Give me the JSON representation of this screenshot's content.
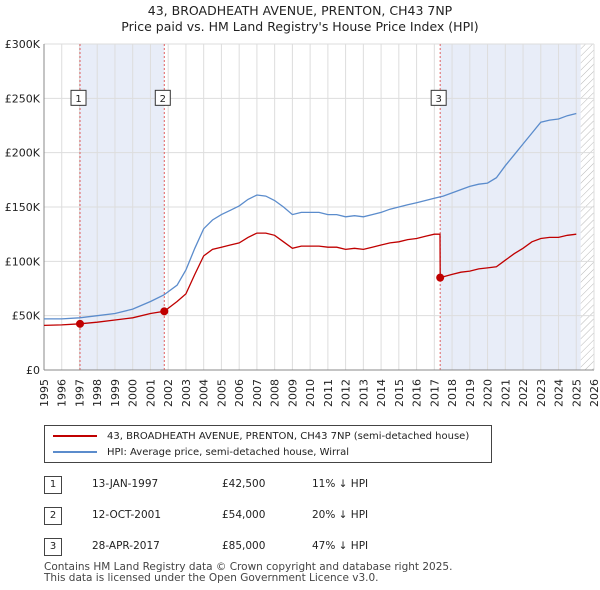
{
  "title_line1": "43, BROADHEATH AVENUE, PRENTON, CH43 7NP",
  "title_line2": "Price paid vs. HM Land Registry's House Price Index (HPI)",
  "chart_data": {
    "type": "line",
    "x_range": [
      1995,
      2026
    ],
    "ylim": [
      0,
      300000
    ],
    "y_ticks": [
      0,
      50000,
      100000,
      150000,
      200000,
      250000,
      300000
    ],
    "y_tick_labels": [
      "£0",
      "£50K",
      "£100K",
      "£150K",
      "£200K",
      "£250K",
      "£300K"
    ],
    "x_ticks": [
      1995,
      1996,
      1997,
      1998,
      1999,
      2000,
      2001,
      2002,
      2003,
      2004,
      2005,
      2006,
      2007,
      2008,
      2009,
      2010,
      2011,
      2012,
      2013,
      2014,
      2015,
      2016,
      2017,
      2018,
      2019,
      2020,
      2021,
      2022,
      2023,
      2024,
      2025,
      2026
    ],
    "x_tick_labels": [
      "1995",
      "1996",
      "1997",
      "1998",
      "1999",
      "2000",
      "2001",
      "2002",
      "2003",
      "2004",
      "2005",
      "2006",
      "2007",
      "2008",
      "2009",
      "2010",
      "2011",
      "2012",
      "2013",
      "2014",
      "2015",
      "2016",
      "2017",
      "2018",
      "2019",
      "2020",
      "2021",
      "2022",
      "2023",
      "2024",
      "2025",
      "2026"
    ],
    "grid": true,
    "forecast_shade_start": 2025.25,
    "series": [
      {
        "name": "hpi",
        "color": "#5b8ccc",
        "points": [
          [
            1995,
            47000
          ],
          [
            1996,
            47000
          ],
          [
            1997,
            48000
          ],
          [
            1998,
            50000
          ],
          [
            1999,
            52000
          ],
          [
            2000,
            56000
          ],
          [
            2001,
            63000
          ],
          [
            2001.75,
            69000
          ],
          [
            2002.5,
            78000
          ],
          [
            2003,
            92000
          ],
          [
            2003.5,
            112000
          ],
          [
            2004,
            130000
          ],
          [
            2004.5,
            138000
          ],
          [
            2005,
            143000
          ],
          [
            2005.5,
            147000
          ],
          [
            2006,
            151000
          ],
          [
            2006.5,
            157000
          ],
          [
            2007,
            161000
          ],
          [
            2007.5,
            160000
          ],
          [
            2008,
            156000
          ],
          [
            2008.5,
            150000
          ],
          [
            2009,
            143000
          ],
          [
            2009.5,
            145000
          ],
          [
            2010,
            145000
          ],
          [
            2010.5,
            145000
          ],
          [
            2011,
            143000
          ],
          [
            2011.5,
            143000
          ],
          [
            2012,
            141000
          ],
          [
            2012.5,
            142000
          ],
          [
            2013,
            141000
          ],
          [
            2013.5,
            143000
          ],
          [
            2014,
            145000
          ],
          [
            2014.5,
            148000
          ],
          [
            2015,
            150000
          ],
          [
            2015.5,
            152000
          ],
          [
            2016,
            154000
          ],
          [
            2016.5,
            156000
          ],
          [
            2017,
            158000
          ],
          [
            2017.5,
            160000
          ],
          [
            2018,
            163000
          ],
          [
            2018.5,
            166000
          ],
          [
            2019,
            169000
          ],
          [
            2019.5,
            171000
          ],
          [
            2020,
            172000
          ],
          [
            2020.5,
            177000
          ],
          [
            2021,
            188000
          ],
          [
            2021.5,
            198000
          ],
          [
            2022,
            208000
          ],
          [
            2022.5,
            218000
          ],
          [
            2023,
            228000
          ],
          [
            2023.5,
            230000
          ],
          [
            2024,
            231000
          ],
          [
            2024.5,
            234000
          ],
          [
            2025,
            236000
          ]
        ]
      },
      {
        "name": "property",
        "color": "#c00000",
        "points": [
          [
            1995,
            41000
          ],
          [
            1996,
            41500
          ],
          [
            1997.03,
            42500
          ],
          [
            1998,
            44000
          ],
          [
            1999,
            46000
          ],
          [
            2000,
            48000
          ],
          [
            2001,
            52000
          ],
          [
            2001.78,
            54000
          ],
          [
            2002.5,
            63000
          ],
          [
            2003,
            70000
          ],
          [
            2003.5,
            88000
          ],
          [
            2004,
            105000
          ],
          [
            2004.5,
            111000
          ],
          [
            2005,
            113000
          ],
          [
            2005.5,
            115000
          ],
          [
            2006,
            117000
          ],
          [
            2006.5,
            122000
          ],
          [
            2007,
            126000
          ],
          [
            2007.5,
            126000
          ],
          [
            2008,
            124000
          ],
          [
            2008.5,
            118000
          ],
          [
            2009,
            112000
          ],
          [
            2009.5,
            114000
          ],
          [
            2010,
            114000
          ],
          [
            2010.5,
            114000
          ],
          [
            2011,
            113000
          ],
          [
            2011.5,
            113000
          ],
          [
            2012,
            111000
          ],
          [
            2012.5,
            112000
          ],
          [
            2013,
            111000
          ],
          [
            2013.5,
            113000
          ],
          [
            2014,
            115000
          ],
          [
            2014.5,
            117000
          ],
          [
            2015,
            118000
          ],
          [
            2015.5,
            120000
          ],
          [
            2016,
            121000
          ],
          [
            2016.5,
            123000
          ],
          [
            2017,
            125000
          ],
          [
            2017.32,
            125000
          ],
          [
            2017.33,
            85000
          ],
          [
            2018,
            88000
          ],
          [
            2018.5,
            90000
          ],
          [
            2019,
            91000
          ],
          [
            2019.5,
            93000
          ],
          [
            2020,
            94000
          ],
          [
            2020.5,
            95000
          ],
          [
            2021,
            101000
          ],
          [
            2021.5,
            107000
          ],
          [
            2022,
            112000
          ],
          [
            2022.5,
            118000
          ],
          [
            2023,
            121000
          ],
          [
            2023.5,
            122000
          ],
          [
            2024,
            122000
          ],
          [
            2024.5,
            124000
          ],
          [
            2025,
            125000
          ]
        ]
      }
    ],
    "sales": [
      {
        "label": "1",
        "x": 1997.03,
        "y": 42500
      },
      {
        "label": "2",
        "x": 2001.78,
        "y": 54000
      },
      {
        "label": "3",
        "x": 2017.33,
        "y": 85000
      }
    ]
  },
  "legend": {
    "property_label": "43, BROADHEATH AVENUE, PRENTON, CH43 7NP (semi-detached house)",
    "hpi_label": "HPI: Average price, semi-detached house, Wirral",
    "property_color": "#c00000",
    "hpi_color": "#5b8ccc"
  },
  "transactions": [
    {
      "label": "1",
      "date": "13-JAN-1997",
      "price": "£42,500",
      "hpi": "11% ↓ HPI"
    },
    {
      "label": "2",
      "date": "12-OCT-2001",
      "price": "£54,000",
      "hpi": "20% ↓ HPI"
    },
    {
      "label": "3",
      "date": "28-APR-2017",
      "price": "£85,000",
      "hpi": "47% ↓ HPI"
    }
  ],
  "footer_line1": "Contains HM Land Registry data © Crown copyright and database right 2025.",
  "footer_line2": "This data is licensed under the Open Government Licence v3.0."
}
